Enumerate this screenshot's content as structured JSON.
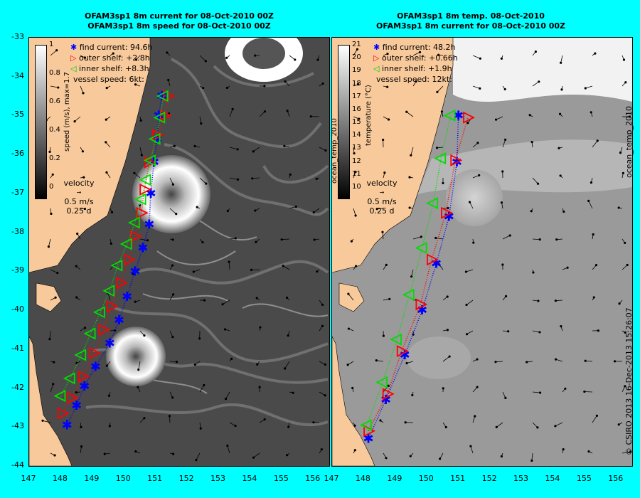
{
  "left": {
    "title1": "OFAM3sp1 8m current for 08-Oct-2010 00Z",
    "title2": "OFAM3sp1 8m speed for 08-Oct-2010 00Z",
    "legend": [
      "find current: 94.6h",
      "outer shelf: +2.8h",
      "inner shelf: +8.3h",
      "vessel speed: 6kt:"
    ],
    "colorbar_label": "speed (m/s), max=1.7",
    "colorbar_ticks": [
      "1",
      "0.8",
      "0.6",
      "0.4",
      "0.2",
      "0"
    ],
    "velocity": [
      "velocity",
      "0.5 m/s",
      "0.25 d"
    ]
  },
  "right": {
    "title1": "OFAM3sp1 8m temp. 08-Oct-2010",
    "title2": "OFAM3sp1 8m current for 08-Oct-2010 00Z",
    "legend": [
      "find current: 48.2h",
      "outer shelf: +0.66h",
      "inner shelf: +1.9h",
      "vessel speed: 12kt:"
    ],
    "colorbar_label": "temperature (°C)",
    "colorbar_side_label": "ocean_temp_2010",
    "colorbar_ticks": [
      "21",
      "20",
      "19",
      "18",
      "17",
      "16",
      "15",
      "14",
      "13",
      "12",
      "11",
      "10"
    ],
    "velocity": [
      "velocity",
      "0.5 m/s",
      "0.25 d"
    ]
  },
  "y_ticks": [
    "-33",
    "-34",
    "-35",
    "-36",
    "-37",
    "-38",
    "-39",
    "-40",
    "-41",
    "-42",
    "-43",
    "-44"
  ],
  "x_ticks": [
    "147",
    "148",
    "149",
    "150",
    "151",
    "152",
    "153",
    "154",
    "155",
    "156"
  ],
  "side_text_top": "ocean_temp_2010",
  "side_text_bottom": "© CSIRO 2013   16-Dec-2013 15:26:07",
  "colors": {
    "background": "#00ffff",
    "land": "#f8c99a",
    "find": "#0000ff",
    "outer": "#ff0000",
    "inner": "#00dd00"
  },
  "routes": {
    "left": {
      "find": [
        [
          148.2,
          -42.95
        ],
        [
          148.5,
          -42.45
        ],
        [
          148.75,
          -41.95
        ],
        [
          149.1,
          -41.45
        ],
        [
          149.55,
          -40.85
        ],
        [
          149.85,
          -40.25
        ],
        [
          150.1,
          -39.65
        ],
        [
          150.35,
          -39.0
        ],
        [
          150.6,
          -38.4
        ],
        [
          150.8,
          -37.8
        ],
        [
          150.85,
          -37.0
        ],
        [
          150.95,
          -36.2
        ],
        [
          151.05,
          -35.6
        ],
        [
          151.1,
          -35.0
        ],
        [
          151.2,
          -34.5
        ]
      ],
      "outer": [
        [
          148.05,
          -42.65
        ],
        [
          148.35,
          -42.25
        ],
        [
          148.7,
          -41.7
        ],
        [
          149.05,
          -41.1
        ],
        [
          149.35,
          -40.5
        ],
        [
          149.6,
          -39.9
        ],
        [
          149.9,
          -39.3
        ],
        [
          150.15,
          -38.7
        ],
        [
          150.35,
          -38.1
        ],
        [
          150.55,
          -37.5
        ],
        [
          150.65,
          -36.9
        ],
        [
          150.8,
          -36.2
        ],
        [
          151.05,
          -35.5
        ],
        [
          151.3,
          -35.0
        ],
        [
          151.4,
          -34.5
        ]
      ],
      "inner": [
        [
          148.0,
          -42.2
        ],
        [
          148.3,
          -41.75
        ],
        [
          148.65,
          -41.15
        ],
        [
          148.95,
          -40.6
        ],
        [
          149.25,
          -40.05
        ],
        [
          149.55,
          -39.5
        ],
        [
          149.8,
          -38.85
        ],
        [
          150.1,
          -38.3
        ],
        [
          150.35,
          -37.75
        ],
        [
          150.55,
          -37.15
        ],
        [
          150.7,
          -36.65
        ],
        [
          150.85,
          -36.15
        ],
        [
          151.0,
          -35.6
        ],
        [
          151.15,
          -35.05
        ],
        [
          151.25,
          -34.5
        ]
      ]
    },
    "right": {
      "find": [
        [
          148.15,
          -43.3
        ],
        [
          148.7,
          -42.3
        ],
        [
          149.3,
          -41.15
        ],
        [
          149.85,
          -40.0
        ],
        [
          150.3,
          -38.8
        ],
        [
          150.7,
          -37.6
        ],
        [
          150.95,
          -36.2
        ],
        [
          151.0,
          -35.0
        ]
      ],
      "outer": [
        [
          148.15,
          -43.1
        ],
        [
          148.75,
          -42.15
        ],
        [
          149.2,
          -41.05
        ],
        [
          149.8,
          -39.85
        ],
        [
          150.15,
          -38.7
        ],
        [
          150.6,
          -37.5
        ],
        [
          150.9,
          -36.15
        ],
        [
          151.3,
          -35.05
        ]
      ],
      "inner": [
        [
          148.1,
          -42.95
        ],
        [
          148.6,
          -41.85
        ],
        [
          149.05,
          -40.75
        ],
        [
          149.45,
          -39.6
        ],
        [
          149.85,
          -38.4
        ],
        [
          150.2,
          -37.25
        ],
        [
          150.45,
          -36.1
        ],
        [
          150.75,
          -35.0
        ]
      ]
    }
  }
}
